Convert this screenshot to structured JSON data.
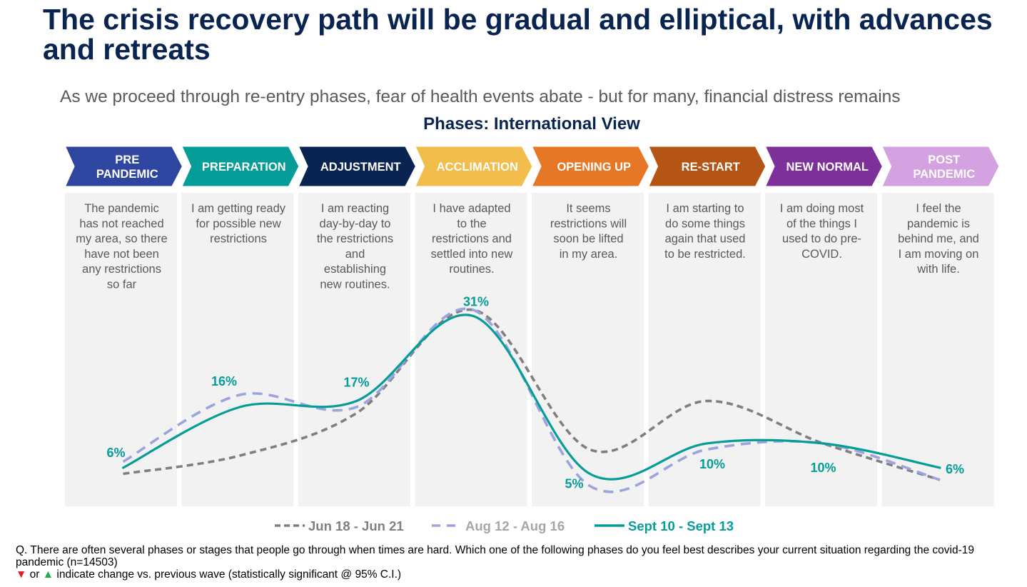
{
  "title": "The crisis recovery path will be gradual and elliptical, with advances and retreats",
  "subtitle": "As we proceed through re-entry phases, fear of health events abate - but for many, financial distress remains",
  "chart_title": "Phases: International View",
  "phases": [
    {
      "label": [
        "PRE",
        "PANDEMIC"
      ],
      "color": "#2f46a0",
      "text_color": "#ffffff",
      "description": [
        "The pandemic",
        "has not reached",
        "my area, so there",
        "have not been",
        "any restrictions",
        "so far"
      ]
    },
    {
      "label": [
        "PREPARATION"
      ],
      "color": "#069d98",
      "text_color": "#ffffff",
      "description": [
        "I am getting ready",
        "for possible new",
        "restrictions"
      ]
    },
    {
      "label": [
        "ADJUSTMENT"
      ],
      "color": "#0a2452",
      "text_color": "#ffffff",
      "description": [
        "I am reacting",
        "day-by-day to",
        "the restrictions",
        "and",
        "establishing",
        "new routines."
      ]
    },
    {
      "label": [
        "ACCLIMATION"
      ],
      "color": "#f2bd4b",
      "text_color": "#ffffff",
      "description": [
        "I have adapted",
        "to the",
        "restrictions and",
        "settled into new",
        "routines."
      ]
    },
    {
      "label": [
        "OPENING UP"
      ],
      "color": "#e67726",
      "text_color": "#ffffff",
      "description": [
        "It seems",
        "restrictions will",
        "soon be lifted",
        "in my area."
      ]
    },
    {
      "label": [
        "RE-START"
      ],
      "color": "#b55515",
      "text_color": "#ffffff",
      "description": [
        "I am starting to",
        "do some things",
        "again that used",
        "to be restricted."
      ]
    },
    {
      "label": [
        "NEW NORMAL"
      ],
      "color": "#7d2f9a",
      "text_color": "#ffffff",
      "description": [
        "I am doing most",
        "of the things I",
        "used to do pre-",
        "COVID."
      ]
    },
    {
      "label": [
        "POST",
        "PANDEMIC"
      ],
      "color": "#d4a2e0",
      "text_color": "#ffffff",
      "description": [
        "I feel the",
        "pandemic is",
        "behind me, and",
        "I am moving on",
        "with life."
      ]
    }
  ],
  "chart_data": {
    "type": "line",
    "title": "Phases: International View",
    "xlabel": "",
    "ylabel": "",
    "categories": [
      "PRE PANDEMIC",
      "PREPARATION",
      "ADJUSTMENT",
      "ACCLIMATION",
      "OPENING UP",
      "RE-START",
      "NEW NORMAL",
      "POST PANDEMIC"
    ],
    "ylim": [
      0,
      35
    ],
    "grid": false,
    "legend_position": "bottom",
    "series": [
      {
        "name": "Jun 18 - Jun 21",
        "style": "dashed",
        "color": "#7f7f7f",
        "values": [
          5,
          8,
          15,
          32,
          9,
          17,
          10,
          4
        ],
        "show_labels": false
      },
      {
        "name": "Aug 12 - Aug 16",
        "style": "dashed-long",
        "color": "#9ba4de",
        "values": [
          7,
          18,
          16,
          32,
          3,
          9,
          10,
          4
        ],
        "show_labels": false
      },
      {
        "name": "Sept 10 - Sept 13",
        "style": "solid",
        "color": "#069d98",
        "values": [
          6,
          16,
          17,
          31,
          5,
          10,
          10,
          6
        ],
        "show_labels": true,
        "labels": [
          "6%",
          "16%",
          "17%",
          "31%",
          "5%",
          "10%",
          "10%",
          "6%"
        ]
      }
    ]
  },
  "legend": [
    {
      "label": "Jun 18 - Jun 21",
      "color": "#7f7f7f",
      "text_color": "#7f7f7f"
    },
    {
      "label": "Aug 12 - Aug 16",
      "color": "#9ba4de",
      "text_color": "#a6a6a6"
    },
    {
      "label": "Sept 10 - Sept 13",
      "color": "#069d98",
      "text_color": "#069d98"
    }
  ],
  "footer": {
    "question": "Q. There are often several phases or stages that people go through when times are hard. Which one of the following phases do you feel best describes your current situation regarding the covid-19 pandemic (n=14503)",
    "down_symbol": "▼",
    "or_text": " or ",
    "up_symbol": "▲",
    "note": " indicate change vs. previous wave (statistically significant @ 95% C.I.)"
  }
}
